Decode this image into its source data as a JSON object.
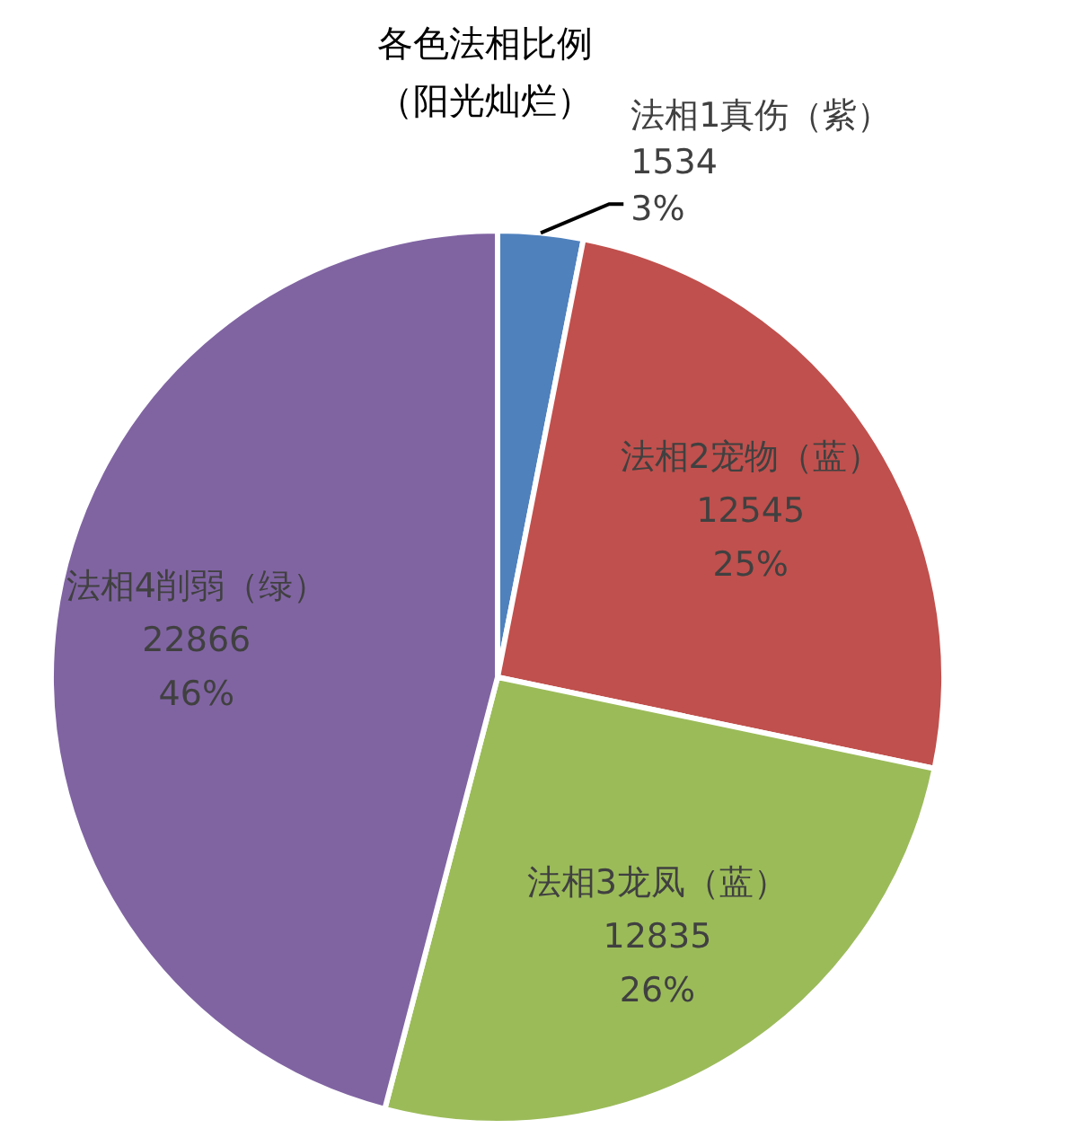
{
  "chart_data": {
    "type": "pie",
    "title": "各色法相比例（阳光灿烂）",
    "categories": [
      "法相1真伤（紫）",
      "法相2宠物（蓝）",
      "法相3龙凤（蓝）",
      "法相4削弱（绿）"
    ],
    "values": [
      1534,
      12545,
      12835,
      22866
    ],
    "colors": [
      "#4f81bd",
      "#c0504d",
      "#9bbb59",
      "#8064a2"
    ],
    "value_labels": [
      "1534\n3%",
      "12545\n25%",
      "12835\n26%",
      "22866\n46%"
    ],
    "legend": false
  }
}
